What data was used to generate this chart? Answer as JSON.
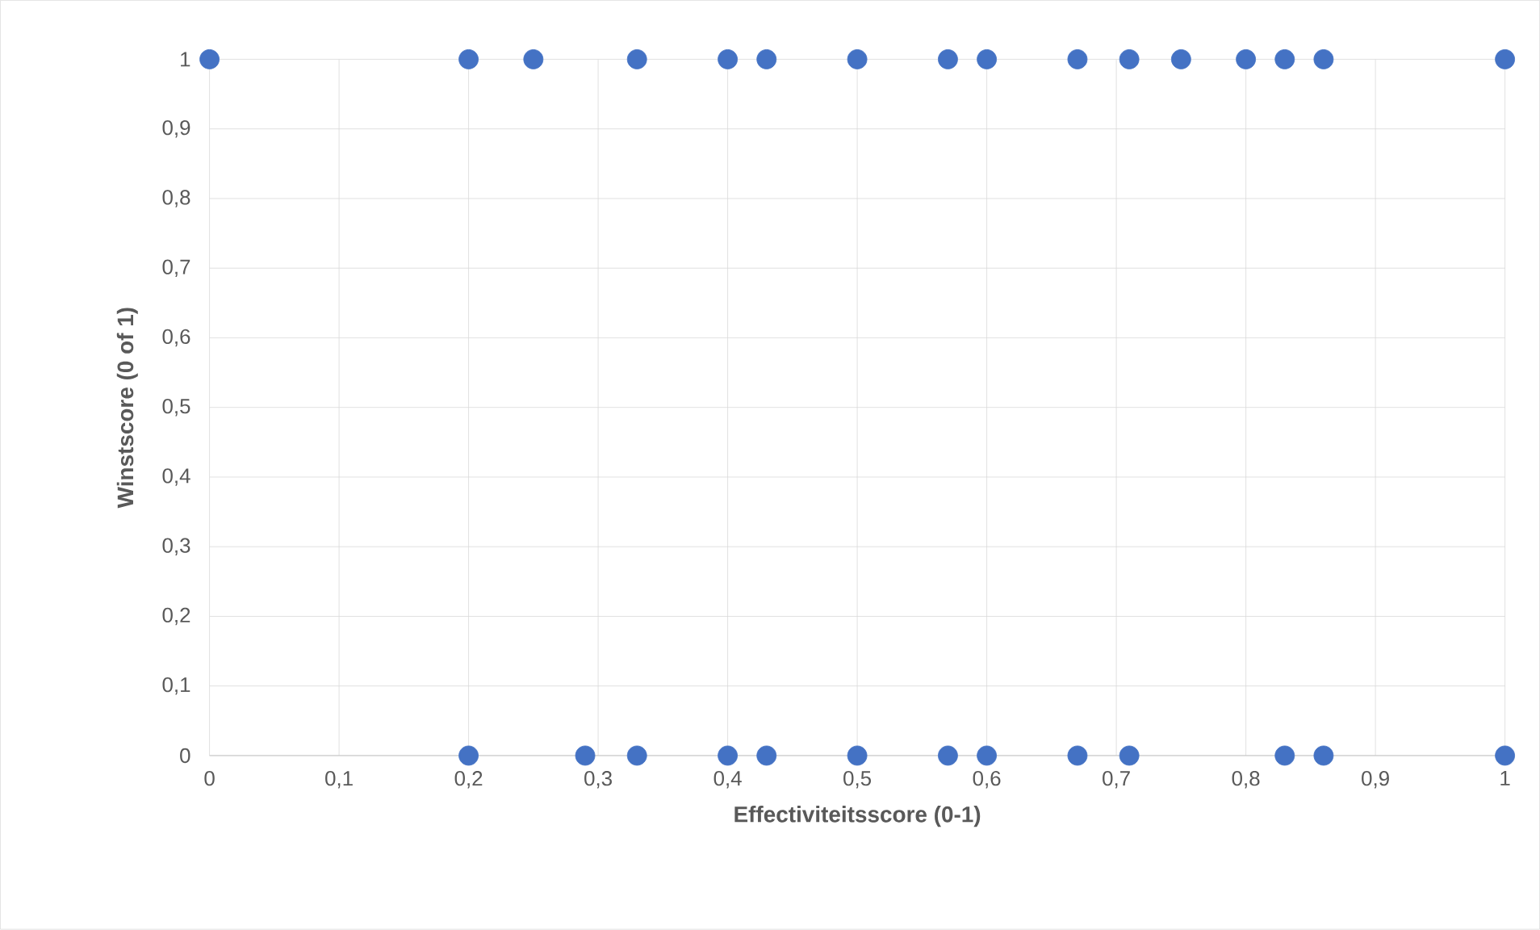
{
  "chart_data": {
    "type": "scatter",
    "xlabel": "Effectiviteitsscore (0-1)",
    "ylabel": "Winstscore (0 of 1)",
    "x": [
      0,
      0.2,
      0.25,
      0.33,
      0.4,
      0.43,
      0.5,
      0.57,
      0.6,
      0.67,
      0.71,
      0.75,
      0.8,
      0.83,
      0.86,
      1,
      0.2,
      0.29,
      0.33,
      0.4,
      0.43,
      0.5,
      0.57,
      0.6,
      0.67,
      0.71,
      0.83,
      0.86,
      1
    ],
    "values": [
      1,
      1,
      1,
      1,
      1,
      1,
      1,
      1,
      1,
      1,
      1,
      1,
      1,
      1,
      1,
      1,
      0,
      0,
      0,
      0,
      0,
      0,
      0,
      0,
      0,
      0,
      0,
      0,
      0
    ],
    "color": "#4472c4",
    "marker": "circle",
    "grid": true,
    "xlim": [
      0,
      1
    ],
    "ylim": [
      0,
      1
    ],
    "xticks": [
      0,
      {
        "value": 0.1,
        "label": "0,1"
      },
      {
        "value": 0.2,
        "label": "0,2"
      },
      {
        "value": 0.3,
        "label": "0,3"
      },
      {
        "value": 0.4,
        "label": "0,4"
      },
      {
        "value": 0.5,
        "label": "0,5"
      },
      {
        "value": 0.6,
        "label": "0,6"
      },
      {
        "value": 0.7,
        "label": "0,7"
      },
      {
        "value": 0.8,
        "label": "0,8"
      },
      {
        "value": 0.9,
        "label": "0,9"
      },
      1
    ],
    "yticks": [
      0,
      {
        "value": 0.1,
        "label": "0,1"
      },
      {
        "value": 0.2,
        "label": "0,2"
      },
      {
        "value": 0.3,
        "label": "0,3"
      },
      {
        "value": 0.4,
        "label": "0,4"
      },
      {
        "value": 0.5,
        "label": "0,5"
      },
      {
        "value": 0.6,
        "label": "0,6"
      },
      {
        "value": 0.7,
        "label": "0,7"
      },
      {
        "value": 0.8,
        "label": "0,8"
      },
      {
        "value": 0.9,
        "label": "0,9"
      },
      1
    ]
  }
}
